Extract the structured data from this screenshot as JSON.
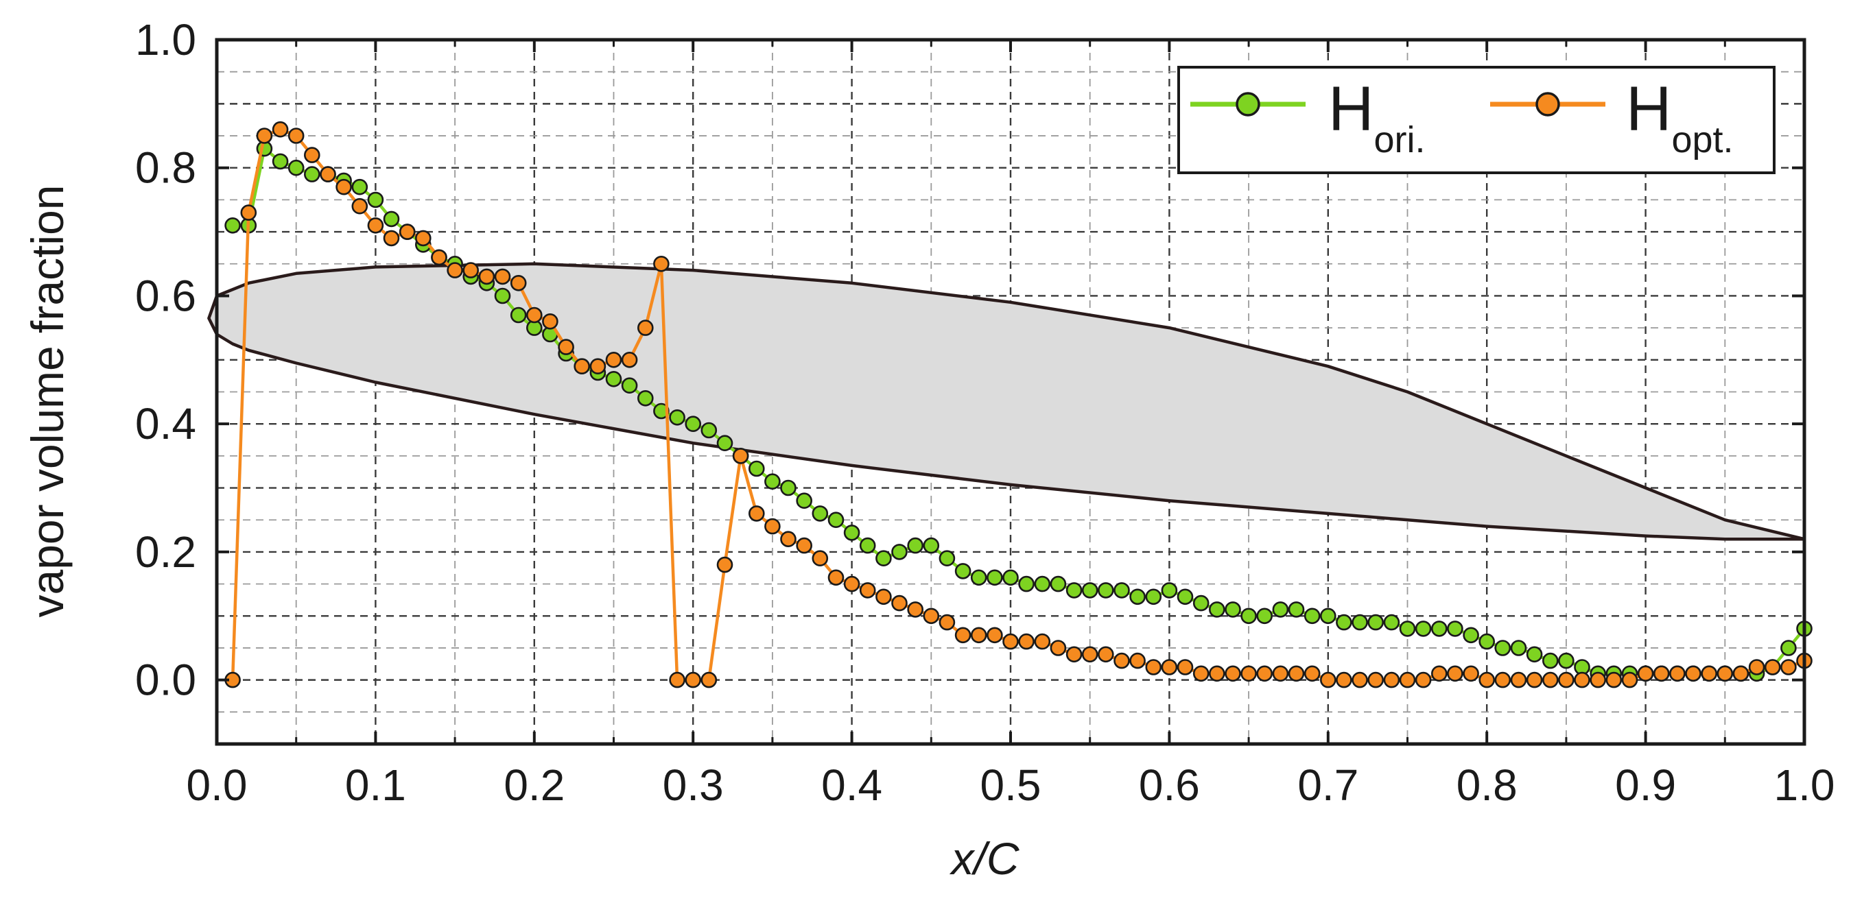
{
  "chart_data": {
    "type": "line",
    "xlabel": "x/C",
    "ylabel": "vapor volume fraction",
    "xlim": [
      0.0,
      1.0
    ],
    "ylim": [
      -0.1,
      1.0
    ],
    "xticks": [
      "0.0",
      "0.1",
      "0.2",
      "0.3",
      "0.4",
      "0.5",
      "0.6",
      "0.7",
      "0.8",
      "0.9",
      "1.0"
    ],
    "yticks": [
      "0.0",
      "0.2",
      "0.4",
      "0.6",
      "0.8",
      "1.0"
    ],
    "grid": true,
    "legend_position": "top-right",
    "series": [
      {
        "name": "H",
        "subscript": "ori.",
        "color": "#7ed321",
        "marker": "circle",
        "x": [
          0.01,
          0.02,
          0.03,
          0.04,
          0.05,
          0.06,
          0.07,
          0.08,
          0.09,
          0.1,
          0.11,
          0.12,
          0.13,
          0.14,
          0.15,
          0.16,
          0.17,
          0.18,
          0.19,
          0.2,
          0.21,
          0.22,
          0.23,
          0.24,
          0.25,
          0.26,
          0.27,
          0.28,
          0.29,
          0.3,
          0.31,
          0.32,
          0.33,
          0.34,
          0.35,
          0.36,
          0.37,
          0.38,
          0.39,
          0.4,
          0.41,
          0.42,
          0.43,
          0.44,
          0.45,
          0.46,
          0.47,
          0.48,
          0.49,
          0.5,
          0.51,
          0.52,
          0.53,
          0.54,
          0.55,
          0.56,
          0.57,
          0.58,
          0.59,
          0.6,
          0.61,
          0.62,
          0.63,
          0.64,
          0.65,
          0.66,
          0.67,
          0.68,
          0.69,
          0.7,
          0.71,
          0.72,
          0.73,
          0.74,
          0.75,
          0.76,
          0.77,
          0.78,
          0.79,
          0.8,
          0.81,
          0.82,
          0.83,
          0.84,
          0.85,
          0.86,
          0.87,
          0.88,
          0.89,
          0.9,
          0.91,
          0.92,
          0.93,
          0.94,
          0.95,
          0.96,
          0.97,
          0.98,
          0.99,
          1.0
        ],
        "y": [
          0.71,
          0.71,
          0.83,
          0.81,
          0.8,
          0.79,
          0.79,
          0.78,
          0.77,
          0.75,
          0.72,
          0.7,
          0.68,
          0.66,
          0.65,
          0.63,
          0.62,
          0.6,
          0.57,
          0.55,
          0.54,
          0.51,
          0.49,
          0.48,
          0.47,
          0.46,
          0.44,
          0.42,
          0.41,
          0.4,
          0.39,
          0.37,
          0.35,
          0.33,
          0.31,
          0.3,
          0.28,
          0.26,
          0.25,
          0.23,
          0.21,
          0.19,
          0.2,
          0.21,
          0.21,
          0.19,
          0.17,
          0.16,
          0.16,
          0.16,
          0.15,
          0.15,
          0.15,
          0.14,
          0.14,
          0.14,
          0.14,
          0.13,
          0.13,
          0.14,
          0.13,
          0.12,
          0.11,
          0.11,
          0.1,
          0.1,
          0.11,
          0.11,
          0.1,
          0.1,
          0.09,
          0.09,
          0.09,
          0.09,
          0.08,
          0.08,
          0.08,
          0.08,
          0.07,
          0.06,
          0.05,
          0.05,
          0.04,
          0.03,
          0.03,
          0.02,
          0.01,
          0.01,
          0.01,
          0.01,
          0.01,
          0.01,
          0.01,
          0.01,
          0.01,
          0.01,
          0.01,
          0.02,
          0.05,
          0.08
        ]
      },
      {
        "name": "H",
        "subscript": "opt.",
        "color": "#f58a1f",
        "marker": "circle",
        "x": [
          0.01,
          0.02,
          0.03,
          0.04,
          0.05,
          0.06,
          0.07,
          0.08,
          0.09,
          0.1,
          0.11,
          0.12,
          0.13,
          0.14,
          0.15,
          0.16,
          0.17,
          0.18,
          0.19,
          0.2,
          0.21,
          0.22,
          0.23,
          0.24,
          0.25,
          0.26,
          0.27,
          0.28,
          0.29,
          0.3,
          0.31,
          0.32,
          0.33,
          0.34,
          0.35,
          0.36,
          0.37,
          0.38,
          0.39,
          0.4,
          0.41,
          0.42,
          0.43,
          0.44,
          0.45,
          0.46,
          0.47,
          0.48,
          0.49,
          0.5,
          0.51,
          0.52,
          0.53,
          0.54,
          0.55,
          0.56,
          0.57,
          0.58,
          0.59,
          0.6,
          0.61,
          0.62,
          0.63,
          0.64,
          0.65,
          0.66,
          0.67,
          0.68,
          0.69,
          0.7,
          0.71,
          0.72,
          0.73,
          0.74,
          0.75,
          0.76,
          0.77,
          0.78,
          0.79,
          0.8,
          0.81,
          0.82,
          0.83,
          0.84,
          0.85,
          0.86,
          0.87,
          0.88,
          0.89,
          0.9,
          0.91,
          0.92,
          0.93,
          0.94,
          0.95,
          0.96,
          0.97,
          0.98,
          0.99,
          1.0
        ],
        "y": [
          0.0,
          0.73,
          0.85,
          0.86,
          0.85,
          0.82,
          0.79,
          0.77,
          0.74,
          0.71,
          0.69,
          0.7,
          0.69,
          0.66,
          0.64,
          0.64,
          0.63,
          0.63,
          0.62,
          0.57,
          0.56,
          0.52,
          0.49,
          0.49,
          0.5,
          0.5,
          0.55,
          0.65,
          0.0,
          0.0,
          0.0,
          0.18,
          0.35,
          0.26,
          0.24,
          0.22,
          0.21,
          0.19,
          0.16,
          0.15,
          0.14,
          0.13,
          0.12,
          0.11,
          0.1,
          0.09,
          0.07,
          0.07,
          0.07,
          0.06,
          0.06,
          0.06,
          0.05,
          0.04,
          0.04,
          0.04,
          0.03,
          0.03,
          0.02,
          0.02,
          0.02,
          0.01,
          0.01,
          0.01,
          0.01,
          0.01,
          0.01,
          0.01,
          0.01,
          0.0,
          0.0,
          0.0,
          0.0,
          0.0,
          0.0,
          0.0,
          0.01,
          0.01,
          0.01,
          0.0,
          0.0,
          0.0,
          0.0,
          0.0,
          0.0,
          0.0,
          0.0,
          0.0,
          0.0,
          0.01,
          0.01,
          0.01,
          0.01,
          0.01,
          0.01,
          0.01,
          0.02,
          0.02,
          0.02,
          0.03
        ]
      }
    ],
    "overlay": {
      "shape": "hydrofoil",
      "fill": "#dcdcdc",
      "stroke": "#2a1b1b",
      "contour": [
        [
          1.0,
          0.22
        ],
        [
          0.95,
          0.25
        ],
        [
          0.9,
          0.3
        ],
        [
          0.85,
          0.35
        ],
        [
          0.8,
          0.4
        ],
        [
          0.75,
          0.45
        ],
        [
          0.7,
          0.49
        ],
        [
          0.6,
          0.55
        ],
        [
          0.5,
          0.59
        ],
        [
          0.4,
          0.62
        ],
        [
          0.3,
          0.64
        ],
        [
          0.2,
          0.65
        ],
        [
          0.1,
          0.645
        ],
        [
          0.05,
          0.635
        ],
        [
          0.02,
          0.62
        ],
        [
          0.0,
          0.6
        ],
        [
          -0.005,
          0.565
        ],
        [
          0.0,
          0.54
        ],
        [
          0.01,
          0.525
        ],
        [
          0.02,
          0.515
        ],
        [
          0.05,
          0.495
        ],
        [
          0.1,
          0.465
        ],
        [
          0.2,
          0.415
        ],
        [
          0.3,
          0.37
        ],
        [
          0.4,
          0.335
        ],
        [
          0.5,
          0.305
        ],
        [
          0.6,
          0.28
        ],
        [
          0.7,
          0.26
        ],
        [
          0.8,
          0.24
        ],
        [
          0.9,
          0.225
        ],
        [
          0.95,
          0.22
        ],
        [
          1.0,
          0.22
        ]
      ]
    }
  }
}
